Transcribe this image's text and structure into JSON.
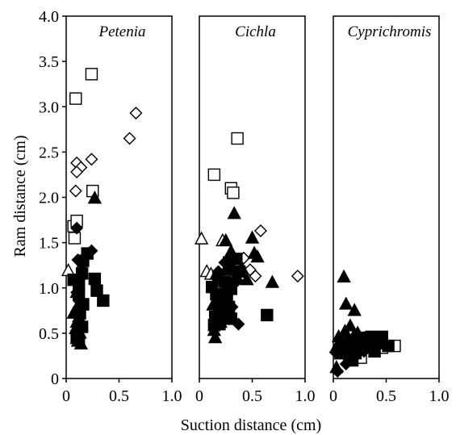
{
  "chart_data": {
    "type": "scatter",
    "ylabel": "Ram distance (cm)",
    "xlabel": "Suction distance (cm)",
    "ylim": [
      0,
      4.0
    ],
    "yticks": [
      "0",
      "0.5",
      "1.0",
      "1.5",
      "2.0",
      "2.5",
      "3.0",
      "3.5",
      "4.0"
    ],
    "yticks_values": [
      0,
      0.5,
      1.0,
      1.5,
      2.0,
      2.5,
      3.0,
      3.5,
      4.0
    ],
    "xlim": [
      0,
      1.0
    ],
    "xticks": [
      "0",
      "0.5",
      "1.0"
    ],
    "xticks_values": [
      0,
      0.5,
      1.0
    ],
    "grid": false,
    "legend": "none",
    "marker_color": "#000000",
    "panels": [
      {
        "title": "Petenia",
        "series": [
          {
            "marker": "open-square",
            "points": [
              [
                0.09,
                3.09
              ],
              [
                0.24,
                3.36
              ],
              [
                0.25,
                2.07
              ],
              [
                0.07,
                1.68
              ],
              [
                0.1,
                1.74
              ],
              [
                0.08,
                1.55
              ]
            ]
          },
          {
            "marker": "open-diamond",
            "points": [
              [
                0.1,
                2.38
              ],
              [
                0.14,
                2.33
              ],
              [
                0.1,
                2.28
              ],
              [
                0.24,
                2.42
              ],
              [
                0.09,
                2.07
              ],
              [
                0.6,
                2.65
              ],
              [
                0.66,
                2.93
              ]
            ]
          },
          {
            "marker": "open-triangle",
            "points": [
              [
                0.02,
                1.19
              ]
            ]
          },
          {
            "marker": "filled-triangle",
            "points": [
              [
                0.27,
                1.99
              ],
              [
                0.1,
                0.95
              ],
              [
                0.15,
                0.81
              ],
              [
                0.1,
                0.78
              ],
              [
                0.07,
                0.72
              ],
              [
                0.12,
                0.68
              ],
              [
                0.1,
                0.62
              ],
              [
                0.09,
                0.55
              ],
              [
                0.13,
                0.5
              ],
              [
                0.1,
                0.44
              ],
              [
                0.11,
                0.41
              ],
              [
                0.14,
                0.38
              ]
            ]
          },
          {
            "marker": "filled-diamond",
            "points": [
              [
                0.1,
                1.66
              ],
              [
                0.24,
                1.41
              ],
              [
                0.11,
                1.31
              ],
              [
                0.15,
                1.2
              ],
              [
                0.09,
                1.06
              ],
              [
                0.1,
                0.95
              ],
              [
                0.12,
                0.86
              ],
              [
                0.1,
                0.74
              ],
              [
                0.13,
                0.62
              ]
            ]
          },
          {
            "marker": "filled-square",
            "points": [
              [
                0.2,
                1.38
              ],
              [
                0.16,
                1.3
              ],
              [
                0.15,
                1.16
              ],
              [
                0.07,
                1.09
              ],
              [
                0.12,
                1.04
              ],
              [
                0.27,
                1.1
              ],
              [
                0.12,
                0.93
              ],
              [
                0.29,
                0.97
              ],
              [
                0.35,
                0.86
              ],
              [
                0.16,
                0.82
              ],
              [
                0.13,
                0.72
              ],
              [
                0.15,
                0.57
              ],
              [
                0.1,
                0.47
              ],
              [
                0.12,
                0.42
              ]
            ]
          }
        ]
      },
      {
        "title": "Cichla",
        "series": [
          {
            "marker": "open-square",
            "points": [
              [
                0.36,
                2.65
              ],
              [
                0.14,
                2.25
              ],
              [
                0.3,
                2.1
              ],
              [
                0.32,
                2.05
              ]
            ]
          },
          {
            "marker": "open-diamond",
            "points": [
              [
                0.58,
                1.63
              ],
              [
                0.93,
                1.13
              ],
              [
                0.53,
                1.13
              ],
              [
                0.42,
                1.33
              ],
              [
                0.48,
                1.2
              ]
            ]
          },
          {
            "marker": "open-triangle",
            "points": [
              [
                0.02,
                1.54
              ],
              [
                0.22,
                1.52
              ],
              [
                0.07,
                1.18
              ],
              [
                0.11,
                1.15
              ]
            ]
          },
          {
            "marker": "filled-triangle",
            "points": [
              [
                0.33,
                1.82
              ],
              [
                0.25,
                1.52
              ],
              [
                0.5,
                1.55
              ],
              [
                0.3,
                1.4
              ],
              [
                0.52,
                1.38
              ],
              [
                0.55,
                1.34
              ],
              [
                0.4,
                1.22
              ],
              [
                0.16,
                1.15
              ],
              [
                0.25,
                1.2
              ],
              [
                0.33,
                1.1
              ],
              [
                0.45,
                1.09
              ],
              [
                0.69,
                1.06
              ],
              [
                0.27,
                1.01
              ],
              [
                0.21,
                0.88
              ],
              [
                0.13,
                0.81
              ],
              [
                0.18,
                0.77
              ],
              [
                0.23,
                0.72
              ],
              [
                0.3,
                0.68
              ],
              [
                0.2,
                0.62
              ],
              [
                0.14,
                0.53
              ],
              [
                0.15,
                0.45
              ]
            ]
          },
          {
            "marker": "filled-diamond",
            "points": [
              [
                0.24,
                1.28
              ],
              [
                0.31,
                1.19
              ],
              [
                0.18,
                1.18
              ],
              [
                0.36,
                1.08
              ],
              [
                0.23,
                1.04
              ],
              [
                0.28,
                0.97
              ],
              [
                0.2,
                0.93
              ],
              [
                0.25,
                0.86
              ],
              [
                0.31,
                0.79
              ],
              [
                0.26,
                0.74
              ],
              [
                0.22,
                0.68
              ],
              [
                0.37,
                0.6
              ]
            ]
          },
          {
            "marker": "filled-square",
            "points": [
              [
                0.35,
                1.32
              ],
              [
                0.28,
                1.28
              ],
              [
                0.38,
                1.18
              ],
              [
                0.18,
                1.13
              ],
              [
                0.24,
                1.07
              ],
              [
                0.12,
                1.01
              ],
              [
                0.3,
                0.99
              ],
              [
                0.16,
                0.93
              ],
              [
                0.26,
                0.89
              ],
              [
                0.2,
                0.84
              ],
              [
                0.28,
                0.79
              ],
              [
                0.24,
                0.73
              ],
              [
                0.15,
                0.68
              ],
              [
                0.64,
                0.7
              ],
              [
                0.3,
                0.66
              ],
              [
                0.19,
                0.6
              ],
              [
                0.14,
                0.59
              ]
            ]
          }
        ]
      },
      {
        "title": "Cyprichromis",
        "series": [
          {
            "marker": "open-square",
            "points": [
              [
                0.58,
                0.36
              ],
              [
                0.26,
                0.23
              ],
              [
                0.46,
                0.34
              ],
              [
                0.36,
                0.38
              ]
            ]
          },
          {
            "marker": "open-diamond",
            "points": [
              [
                0.13,
                0.29
              ],
              [
                0.22,
                0.31
              ]
            ]
          },
          {
            "marker": "filled-triangle",
            "points": [
              [
                0.1,
                1.12
              ],
              [
                0.12,
                0.82
              ],
              [
                0.2,
                0.75
              ],
              [
                0.16,
                0.58
              ],
              [
                0.11,
                0.52
              ],
              [
                0.23,
                0.5
              ],
              [
                0.05,
                0.46
              ],
              [
                0.19,
                0.46
              ],
              [
                0.09,
                0.39
              ],
              [
                0.04,
                0.37
              ],
              [
                0.15,
                0.34
              ],
              [
                0.28,
                0.37
              ],
              [
                0.11,
                0.31
              ],
              [
                0.07,
                0.27
              ],
              [
                0.16,
                0.28
              ],
              [
                0.03,
                0.12
              ]
            ]
          },
          {
            "marker": "filled-diamond",
            "points": [
              [
                0.13,
                0.42
              ],
              [
                0.05,
                0.34
              ],
              [
                0.23,
                0.36
              ],
              [
                0.34,
                0.43
              ],
              [
                0.1,
                0.28
              ],
              [
                0.29,
                0.3
              ],
              [
                0.02,
                0.29
              ],
              [
                0.18,
                0.27
              ],
              [
                0.12,
                0.16
              ],
              [
                0.04,
                0.08
              ]
            ]
          },
          {
            "marker": "filled-square",
            "points": [
              [
                0.46,
                0.46
              ],
              [
                0.36,
                0.46
              ],
              [
                0.25,
                0.45
              ],
              [
                0.16,
                0.42
              ],
              [
                0.42,
                0.39
              ],
              [
                0.3,
                0.39
              ],
              [
                0.2,
                0.37
              ],
              [
                0.09,
                0.37
              ],
              [
                0.52,
                0.36
              ],
              [
                0.35,
                0.35
              ],
              [
                0.26,
                0.33
              ],
              [
                0.13,
                0.3
              ],
              [
                0.07,
                0.29
              ],
              [
                0.39,
                0.3
              ],
              [
                0.21,
                0.28
              ],
              [
                0.15,
                0.26
              ],
              [
                0.18,
                0.2
              ]
            ]
          }
        ]
      }
    ]
  }
}
